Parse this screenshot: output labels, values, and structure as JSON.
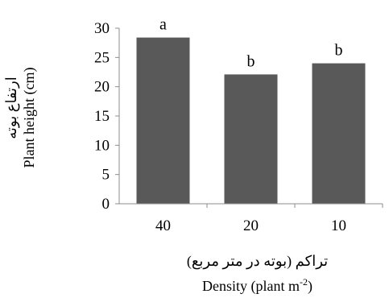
{
  "chart_data": {
    "type": "bar",
    "categories": [
      "40",
      "20",
      "10"
    ],
    "values": [
      28.4,
      22.1,
      24.0
    ],
    "data_labels": [
      "a",
      "b",
      "b"
    ],
    "title": "",
    "xlabel_fa": "تراکم (بوته در متر مربع)",
    "xlabel_en": "Density (plant m",
    "xlabel_sup": "-2",
    "xlabel_end": ")",
    "ylabel_fa": "ارتفاع بوته",
    "ylabel_en": "Plant height (cm)",
    "ylim": [
      0,
      30
    ],
    "yticks": [
      0,
      5,
      10,
      15,
      20,
      25,
      30
    ],
    "grid": false,
    "bar_color": "#595959"
  }
}
